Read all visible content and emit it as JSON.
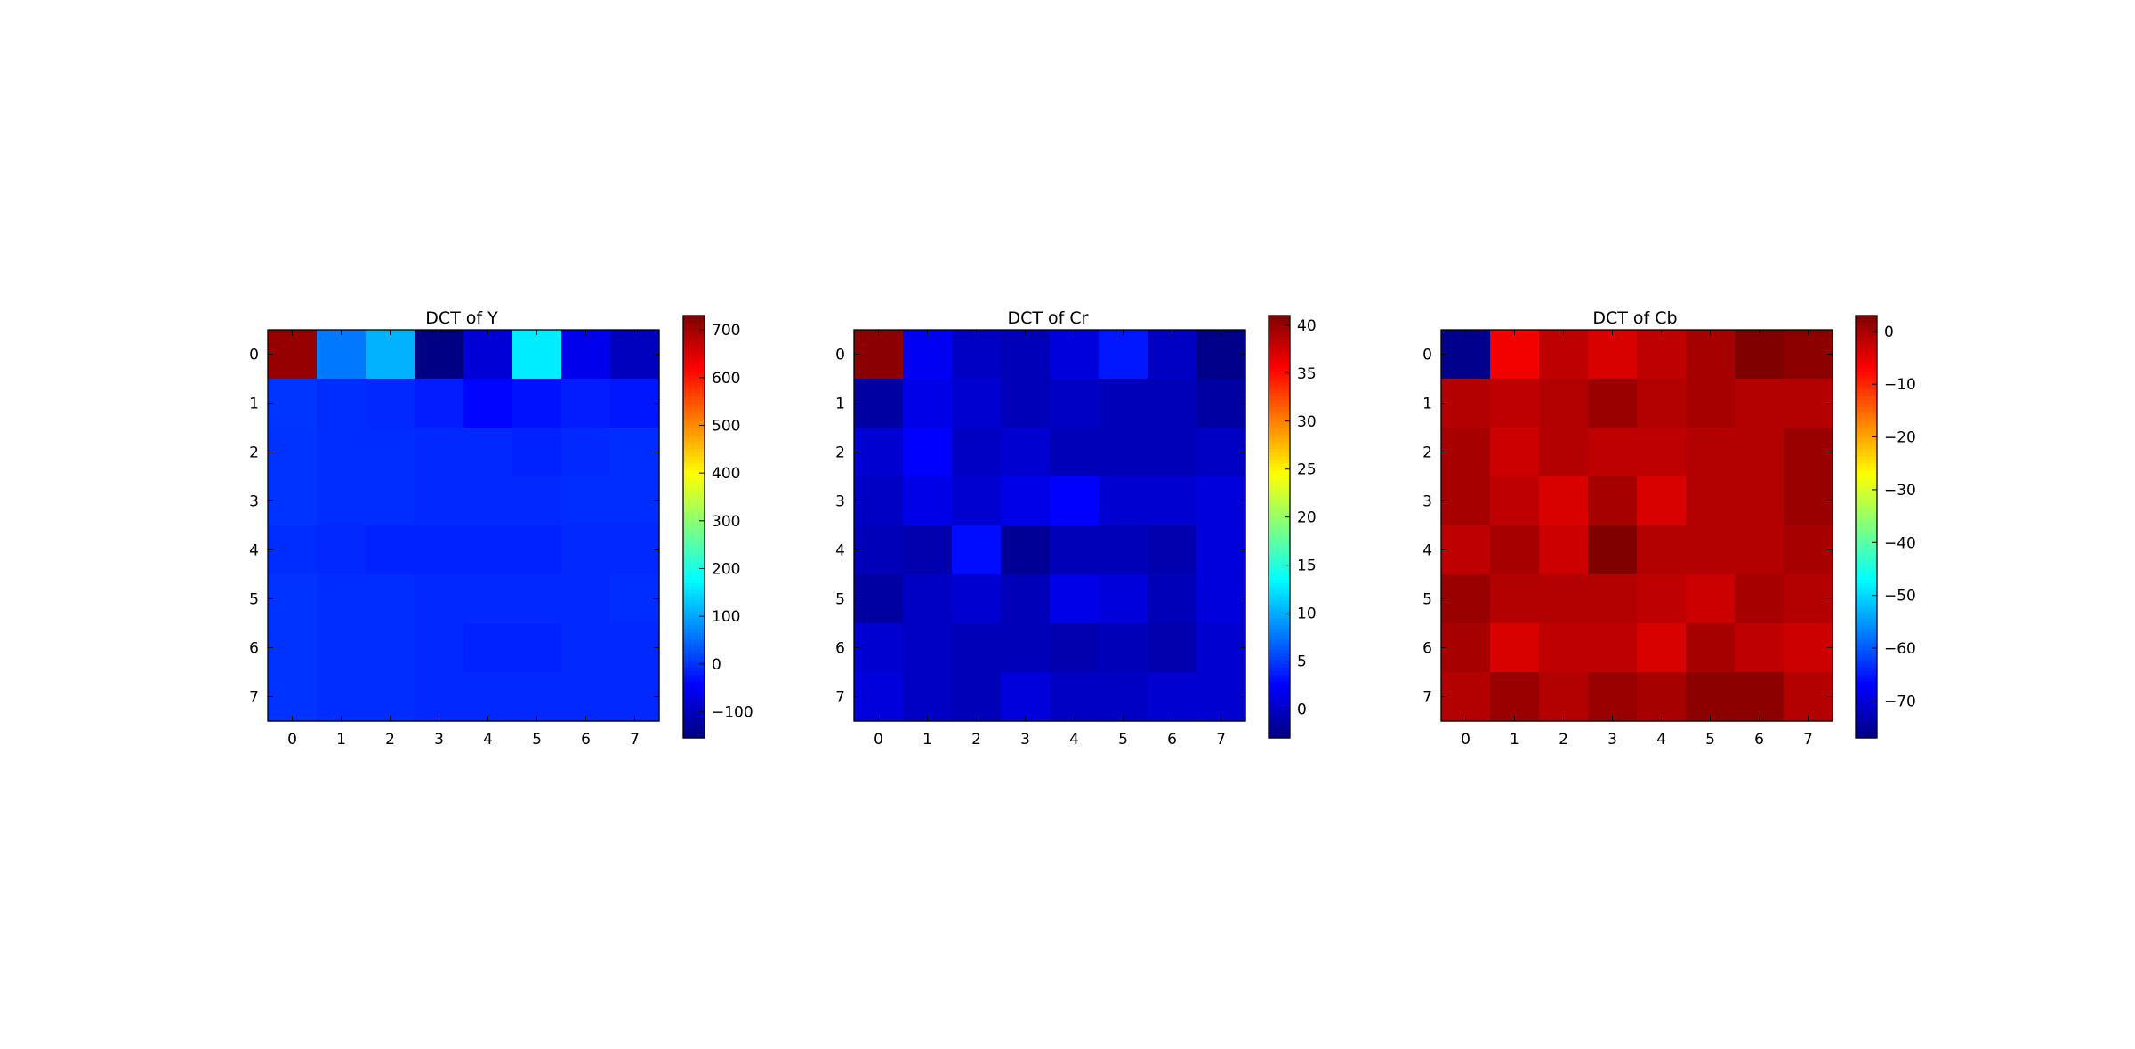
{
  "chart_data": [
    {
      "type": "heatmap",
      "title": "DCT of Y",
      "xlabel": "",
      "ylabel": "",
      "x_ticks": [
        0,
        1,
        2,
        3,
        4,
        5,
        6,
        7
      ],
      "y_ticks": [
        0,
        1,
        2,
        3,
        4,
        5,
        6,
        7
      ],
      "colormap": "jet",
      "vmin": -155,
      "vmax": 730,
      "colorbar_ticks": [
        -100,
        0,
        100,
        200,
        300,
        400,
        500,
        600,
        700
      ],
      "colorbar_labels": [
        "−100",
        "0",
        "100",
        "200",
        "300",
        "400",
        "500",
        "600",
        "700"
      ],
      "values": [
        [
          710,
          60,
          110,
          -150,
          -80,
          160,
          -60,
          -100
        ],
        [
          1,
          -5,
          -10,
          -20,
          -40,
          -30,
          -20,
          -25
        ],
        [
          0,
          -5,
          -5,
          -10,
          -10,
          -15,
          -10,
          -5
        ],
        [
          0,
          -5,
          -5,
          -10,
          -10,
          -10,
          -5,
          -5
        ],
        [
          -5,
          -10,
          -15,
          -15,
          -15,
          -15,
          -10,
          -10
        ],
        [
          0,
          -5,
          -5,
          -10,
          -10,
          -10,
          -10,
          -5
        ],
        [
          0,
          -5,
          -5,
          -10,
          -15,
          -15,
          -10,
          -10
        ],
        [
          0,
          -5,
          -5,
          -10,
          -10,
          -10,
          -10,
          -10
        ]
      ]
    },
    {
      "type": "heatmap",
      "title": "DCT of Cr",
      "xlabel": "",
      "ylabel": "",
      "x_ticks": [
        0,
        1,
        2,
        3,
        4,
        5,
        6,
        7
      ],
      "y_ticks": [
        0,
        1,
        2,
        3,
        4,
        5,
        6,
        7
      ],
      "colormap": "jet",
      "vmin": -3,
      "vmax": 41,
      "colorbar_ticks": [
        0,
        5,
        10,
        15,
        20,
        25,
        30,
        35,
        40
      ],
      "colorbar_labels": [
        "0",
        "5",
        "10",
        "15",
        "20",
        "25",
        "30",
        "35",
        "40"
      ],
      "values": [
        [
          40.5,
          2,
          0,
          -0.5,
          1,
          3.5,
          0,
          -2.5
        ],
        [
          -1.5,
          1.5,
          0.5,
          -0.5,
          0,
          -0.5,
          -0.5,
          -1.5
        ],
        [
          0.5,
          2.5,
          0,
          0.5,
          -0.5,
          -0.5,
          -0.5,
          0
        ],
        [
          0,
          1.5,
          0.5,
          1.5,
          2.5,
          0.5,
          0.5,
          1
        ],
        [
          -0.5,
          -1,
          3,
          -2,
          -0.5,
          -0.5,
          -1,
          1
        ],
        [
          -1.5,
          0,
          0.5,
          -0.5,
          1.5,
          1,
          -0.5,
          1
        ],
        [
          0.5,
          0,
          -0.5,
          -0.5,
          -1,
          -0.5,
          -1,
          0.5
        ],
        [
          1,
          0,
          -0.5,
          1,
          0,
          0,
          0.5,
          0.5
        ]
      ]
    },
    {
      "type": "heatmap",
      "title": "DCT of Cb",
      "xlabel": "",
      "ylabel": "",
      "x_ticks": [
        0,
        1,
        2,
        3,
        4,
        5,
        6,
        7
      ],
      "y_ticks": [
        0,
        1,
        2,
        3,
        4,
        5,
        6,
        7
      ],
      "colormap": "jet",
      "vmin": -77,
      "vmax": 3,
      "colorbar_ticks": [
        -70,
        -60,
        -50,
        -40,
        -30,
        -20,
        -10,
        0
      ],
      "colorbar_labels": [
        "−70",
        "−60",
        "−50",
        "−40",
        "−30",
        "−20",
        "−10",
        "0"
      ],
      "values": [
        [
          -76,
          -6,
          -2,
          -4,
          -2,
          0,
          3,
          2
        ],
        [
          -1,
          -2,
          -1,
          1,
          -1,
          0,
          -1,
          -1
        ],
        [
          0,
          -3,
          -1,
          -2,
          -2,
          -1,
          -1,
          1
        ],
        [
          0,
          -2,
          -4,
          0,
          -4,
          -1,
          -1,
          1
        ],
        [
          -2,
          0,
          -3,
          3,
          -1,
          -1,
          -1,
          0
        ],
        [
          1,
          -1,
          -1,
          -1,
          -2,
          -3,
          0,
          -1
        ],
        [
          0,
          -4,
          -2,
          -2,
          -4,
          0,
          -2,
          -3
        ],
        [
          -1,
          1,
          -1,
          1,
          0,
          2,
          2,
          -1
        ]
      ]
    }
  ]
}
